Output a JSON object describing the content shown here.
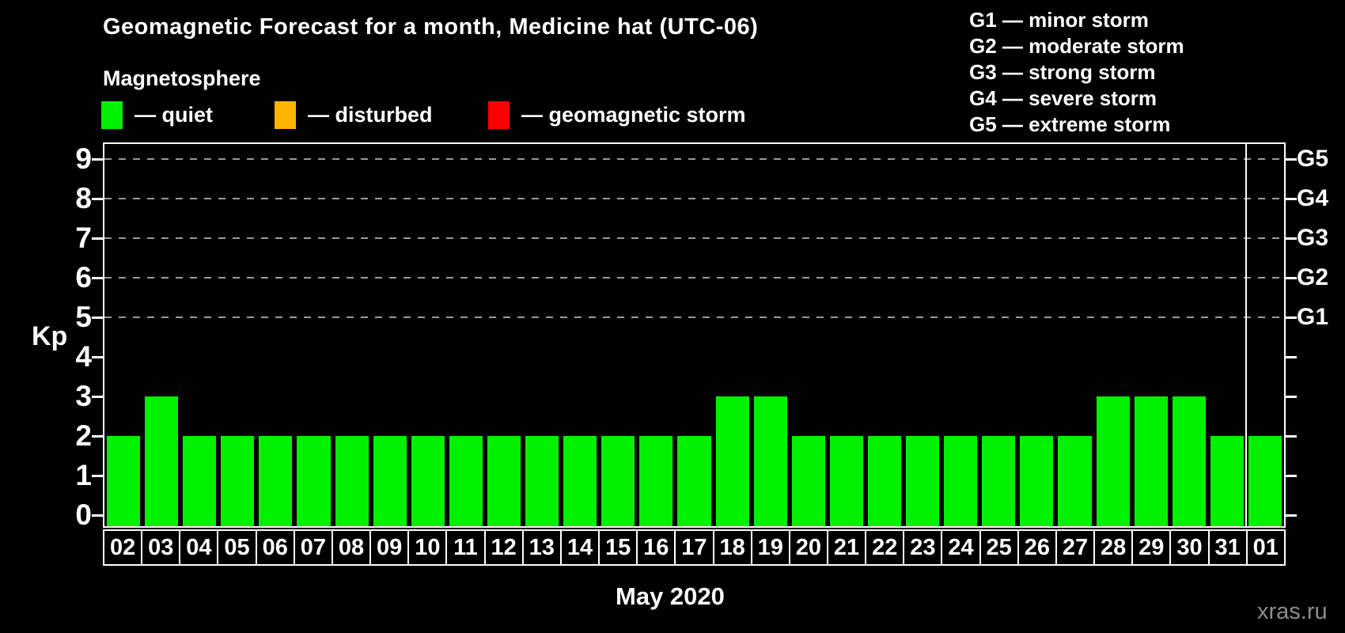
{
  "title": "Geomagnetic Forecast for a month, Medicine hat (UTC-06)",
  "subtitle": "Magnetosphere",
  "legend": {
    "items": [
      {
        "key": "quiet",
        "label": "— quiet",
        "color": "#00F000"
      },
      {
        "key": "disturbed",
        "label": "— disturbed",
        "color": "#FFB400"
      },
      {
        "key": "storm",
        "label": "— geomagnetic storm",
        "color": "#FF0000"
      }
    ]
  },
  "storm_scale_legend": [
    "G1 — minor storm",
    "G2 — moderate storm",
    "G3 — strong storm",
    "G4 — severe storm",
    "G5 — extreme storm"
  ],
  "watermark": "xras.ru",
  "chart_data": {
    "type": "bar",
    "title": "Geomagnetic Forecast for a month, Medicine hat (UTC-06)",
    "xlabel": "May 2020",
    "ylabel": "Kp",
    "categories": [
      "02",
      "03",
      "04",
      "05",
      "06",
      "07",
      "08",
      "09",
      "10",
      "11",
      "12",
      "13",
      "14",
      "15",
      "16",
      "17",
      "18",
      "19",
      "20",
      "21",
      "22",
      "23",
      "24",
      "25",
      "26",
      "27",
      "28",
      "29",
      "30",
      "31",
      "01"
    ],
    "values": [
      2,
      3,
      2,
      2,
      2,
      2,
      2,
      2,
      2,
      2,
      2,
      2,
      2,
      2,
      2,
      2,
      3,
      3,
      2,
      2,
      2,
      2,
      2,
      2,
      2,
      2,
      3,
      3,
      3,
      2,
      2
    ],
    "bar_color": "#00F000",
    "ylim": [
      0,
      9
    ],
    "yticks": [
      0,
      1,
      2,
      3,
      4,
      5,
      6,
      7,
      8,
      9
    ],
    "grid_dashed_at": [
      5,
      6,
      7,
      8,
      9
    ],
    "right_axis_labels": [
      {
        "kp": 5,
        "label": "G1"
      },
      {
        "kp": 6,
        "label": "G2"
      },
      {
        "kp": 7,
        "label": "G3"
      },
      {
        "kp": 8,
        "label": "G4"
      },
      {
        "kp": 9,
        "label": "G5"
      }
    ],
    "month_separator_after": "31",
    "grid": true,
    "legend_position": "top-left"
  }
}
